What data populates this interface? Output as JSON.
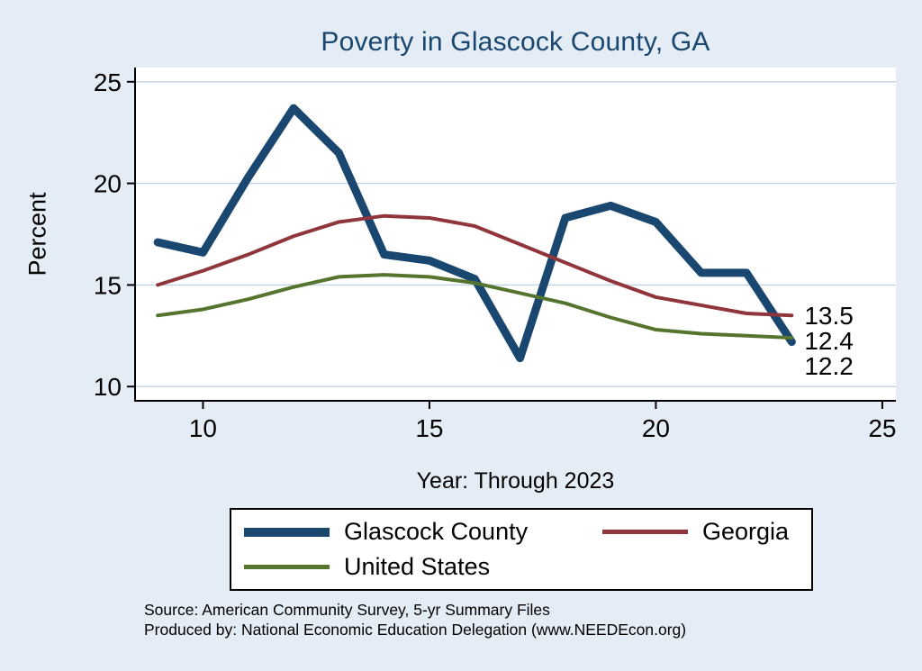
{
  "title": "Poverty in Glascock County, GA",
  "axes": {
    "ylabel": "Percent",
    "xlabel": "Year: Through 2023"
  },
  "source": {
    "line1": "Source: American Community Survey, 5-yr Summary Files",
    "line2": "Produced by: National Economic Education Delegation (www.NEEDEcon.org)"
  },
  "colors": {
    "background": "#e4ecf5",
    "plot_background": "#ffffff",
    "grid": "#bdd3e6",
    "axis": "#000000",
    "title": "#1a476f"
  },
  "chart_data": {
    "type": "line",
    "title": "Poverty in Glascock County, GA",
    "xlabel": "Year: Through 2023",
    "ylabel": "Percent",
    "x": [
      9,
      10,
      11,
      12,
      13,
      14,
      15,
      16,
      17,
      18,
      19,
      20,
      21,
      22,
      23
    ],
    "series": [
      {
        "name": "Glascock County",
        "color": "#1a476f",
        "stroke_width": 9,
        "values": [
          17.1,
          16.6,
          20.3,
          23.7,
          21.5,
          16.5,
          16.2,
          15.3,
          11.4,
          18.3,
          18.9,
          18.1,
          15.6,
          15.6,
          12.2
        ]
      },
      {
        "name": "Georgia",
        "color": "#90353b",
        "stroke_width": 4,
        "values": [
          15.0,
          15.7,
          16.5,
          17.4,
          18.1,
          18.4,
          18.3,
          17.9,
          17.0,
          16.1,
          15.2,
          14.4,
          14.0,
          13.6,
          13.5
        ]
      },
      {
        "name": "United States",
        "color": "#55752f",
        "stroke_width": 4,
        "values": [
          13.5,
          13.8,
          14.3,
          14.9,
          15.4,
          15.5,
          15.4,
          15.1,
          14.6,
          14.1,
          13.4,
          12.8,
          12.6,
          12.5,
          12.4
        ]
      }
    ],
    "end_labels": [
      "13.5",
      "12.4",
      "12.2"
    ],
    "xticks": [
      10,
      15,
      20,
      25
    ],
    "yticks": [
      10,
      15,
      20,
      25
    ],
    "xlim": [
      8.5,
      25.3
    ],
    "ylim": [
      9.3,
      25.7
    ],
    "grid": true,
    "legend_position": "bottom"
  }
}
